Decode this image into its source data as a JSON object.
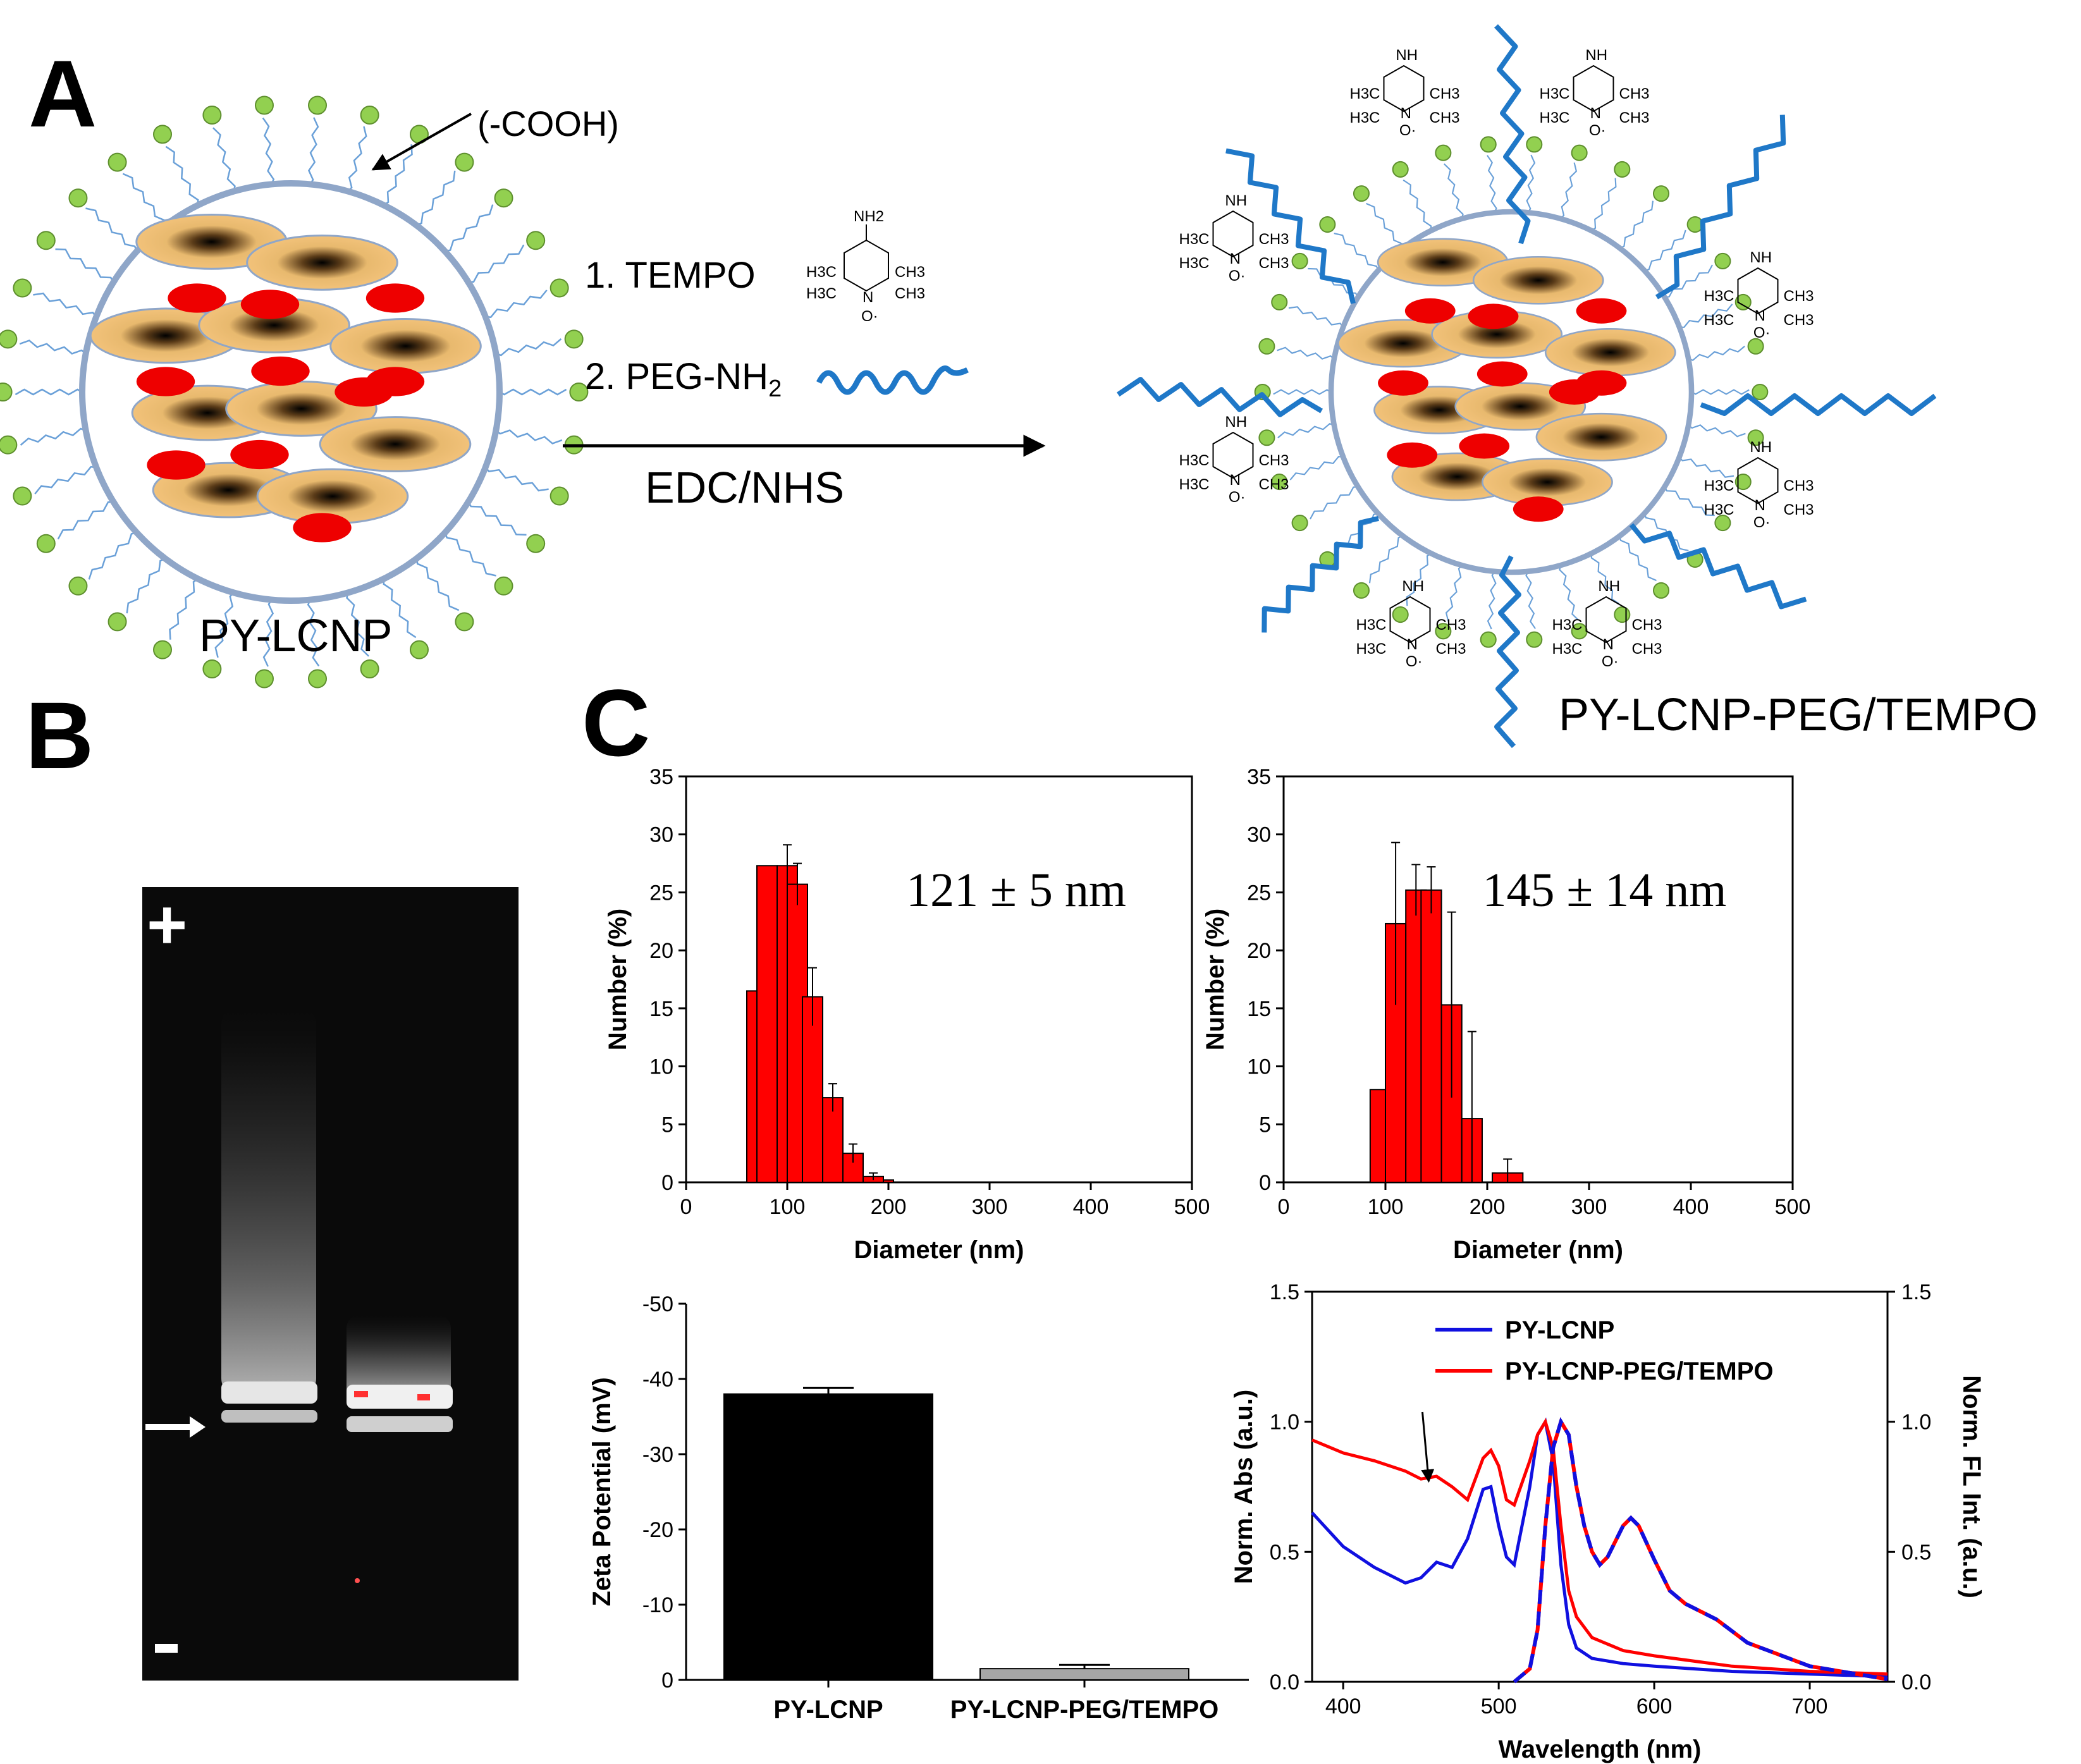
{
  "panel_labels": {
    "a": "A",
    "b": "B",
    "c": "C"
  },
  "scheme": {
    "cooh_label": "(-COOH)",
    "step1": "1. TEMPO",
    "step2_prefix": "2. PEG-NH",
    "step2_sub": "2",
    "reagent": "EDC/NHS",
    "left_name": "PY-LCNP",
    "right_name": "PY-LCNP-PEG/TEMPO",
    "tempo_labels": {
      "nh2": "NH2",
      "h3c": "H3C",
      "ch3": "CH3",
      "n": "N",
      "o": "O·",
      "nh": "NH"
    }
  },
  "gel": {
    "plus": "+",
    "minus": "−"
  },
  "colors": {
    "bar_red": "#ff0000",
    "line_red": "#ff0000",
    "line_blue": "#1010e0",
    "ligand_green": "#92d050",
    "core_orange": "#f2c27a",
    "peg_blue": "#1f78c8",
    "zeta_black": "#000000",
    "zeta_gray": "#a6a6a6"
  },
  "chart_data": [
    {
      "type": "bar",
      "name": "size-PY-LCNP",
      "annotation": "121 ± 5 nm",
      "xlabel": "Diameter (nm)",
      "ylabel": "Number (%)",
      "xlim": [
        0,
        500
      ],
      "ylim": [
        0,
        35
      ],
      "xticks": [
        0,
        100,
        200,
        300,
        400,
        500
      ],
      "yticks": [
        0,
        5,
        10,
        15,
        20,
        25,
        30,
        35
      ],
      "bins": [
        {
          "x": 60,
          "w": 10,
          "v": 16.5,
          "e": 0
        },
        {
          "x": 70,
          "w": 20,
          "v": 27.3,
          "e": 0
        },
        {
          "x": 90,
          "w": 20,
          "v": 27.3,
          "e": 1.8
        },
        {
          "x": 100,
          "w": 20,
          "v": 25.7,
          "e": 1.8
        },
        {
          "x": 115,
          "w": 20,
          "v": 16.0,
          "e": 2.5
        },
        {
          "x": 135,
          "w": 20,
          "v": 7.3,
          "e": 1.2
        },
        {
          "x": 155,
          "w": 20,
          "v": 2.5,
          "e": 0.8
        },
        {
          "x": 175,
          "w": 20,
          "v": 0.5,
          "e": 0.3
        },
        {
          "x": 195,
          "w": 10,
          "v": 0.2,
          "e": 0
        }
      ]
    },
    {
      "type": "bar",
      "name": "size-PY-LCNP-PEG/TEMPO",
      "annotation": "145 ± 14  nm",
      "xlabel": "Diameter (nm)",
      "ylabel": "Number (%)",
      "xlim": [
        0,
        500
      ],
      "ylim": [
        0,
        35
      ],
      "xticks": [
        0,
        100,
        200,
        300,
        400,
        500
      ],
      "yticks": [
        0,
        5,
        10,
        15,
        20,
        25,
        30,
        35
      ],
      "bins": [
        {
          "x": 85,
          "w": 15,
          "v": 8.0,
          "e": 0
        },
        {
          "x": 100,
          "w": 20,
          "v": 22.3,
          "e": 7.0
        },
        {
          "x": 120,
          "w": 20,
          "v": 25.2,
          "e": 2.2
        },
        {
          "x": 135,
          "w": 20,
          "v": 25.2,
          "e": 2.0
        },
        {
          "x": 155,
          "w": 20,
          "v": 15.3,
          "e": 8.0
        },
        {
          "x": 175,
          "w": 20,
          "v": 5.5,
          "e": 7.5
        },
        {
          "x": 205,
          "w": 30,
          "v": 0.8,
          "e": 1.2
        }
      ]
    },
    {
      "type": "bar",
      "name": "zeta",
      "ylabel": "Zeta Potential (mV)",
      "categories": [
        "PY-LCNP",
        "PY-LCNP-PEG/TEMPO"
      ],
      "values": [
        -38.0,
        -1.5
      ],
      "errors": [
        0.8,
        0.5
      ],
      "ylim": [
        0,
        -50
      ],
      "yticks": [
        0,
        -10,
        -20,
        -30,
        -40,
        -50
      ],
      "ytick_labels": [
        "0",
        "-10",
        "-20",
        "-30",
        "-40",
        "-50"
      ]
    },
    {
      "type": "line",
      "name": "spectra",
      "xlabel": "Wavelength (nm)",
      "ylabel": "Norm. Abs (a.u.)",
      "y2label": "Norm. FL Int. (a.u.)",
      "xlim": [
        380,
        750
      ],
      "ylim": [
        0,
        1.5
      ],
      "xticks": [
        400,
        500,
        600,
        700
      ],
      "yticks": [
        "0.0",
        "0.5",
        "1.0",
        "1.5"
      ],
      "legend": [
        "PY-LCNP",
        "PY-LCNP-PEG/TEMPO"
      ],
      "series": [
        {
          "name": "PY-LCNP",
          "style": "abs",
          "color": "#1010e0",
          "x": [
            380,
            400,
            420,
            440,
            450,
            460,
            470,
            480,
            490,
            495,
            500,
            505,
            510,
            520,
            525,
            530,
            535,
            540,
            545,
            550,
            560,
            580,
            600,
            650,
            700,
            750
          ],
          "y": [
            0.65,
            0.52,
            0.44,
            0.38,
            0.4,
            0.46,
            0.44,
            0.55,
            0.74,
            0.75,
            0.6,
            0.48,
            0.45,
            0.75,
            0.95,
            1.0,
            0.85,
            0.45,
            0.22,
            0.13,
            0.09,
            0.07,
            0.06,
            0.04,
            0.03,
            0.02
          ]
        },
        {
          "name": "PY-LCNP-PEG/TEMPO",
          "style": "abs",
          "color": "#ff0000",
          "x": [
            380,
            400,
            420,
            440,
            450,
            460,
            470,
            480,
            490,
            495,
            500,
            505,
            510,
            520,
            525,
            530,
            535,
            540,
            545,
            550,
            560,
            580,
            600,
            650,
            700,
            750
          ],
          "y": [
            0.93,
            0.88,
            0.85,
            0.81,
            0.78,
            0.79,
            0.75,
            0.7,
            0.86,
            0.89,
            0.83,
            0.7,
            0.68,
            0.85,
            0.95,
            1.0,
            0.9,
            0.6,
            0.35,
            0.25,
            0.17,
            0.12,
            0.1,
            0.06,
            0.04,
            0.03
          ]
        },
        {
          "name": "FL",
          "style": "dashed",
          "color": "#1010e0",
          "color2": "#ff0000",
          "x": [
            510,
            520,
            525,
            530,
            535,
            540,
            545,
            550,
            555,
            560,
            565,
            570,
            580,
            585,
            590,
            600,
            610,
            620,
            630,
            640,
            660,
            700,
            750
          ],
          "y": [
            0.0,
            0.05,
            0.2,
            0.6,
            0.9,
            1.0,
            0.95,
            0.75,
            0.6,
            0.5,
            0.45,
            0.48,
            0.6,
            0.63,
            0.6,
            0.47,
            0.35,
            0.3,
            0.27,
            0.24,
            0.15,
            0.06,
            0.01
          ]
        }
      ],
      "arrow_at": 455
    }
  ]
}
